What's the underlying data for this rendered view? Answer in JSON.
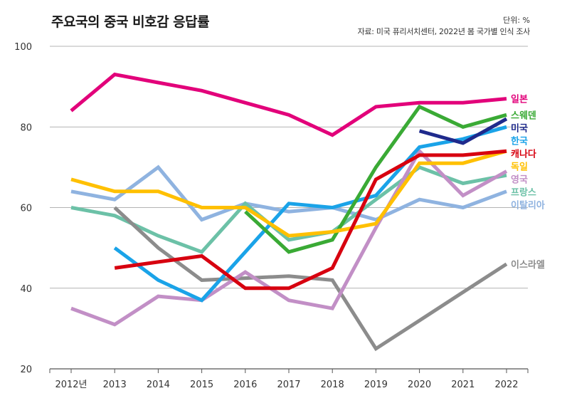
{
  "header": {
    "title": "주요국의 중국 비호감 응답률",
    "unit": "단위: %",
    "source": "자료: 미국 퓨리서치센터, 2022년 봄 국가별 인식 조사"
  },
  "chart_data": {
    "type": "line",
    "title": "주요국의 중국 비호감 응답률",
    "xlabel": "",
    "ylabel": "",
    "x": [
      "2012년",
      "2013",
      "2014",
      "2015",
      "2016",
      "2017",
      "2018",
      "2019",
      "2020",
      "2021",
      "2022"
    ],
    "ylim": [
      20,
      100
    ],
    "yticks": [
      20,
      40,
      60,
      80,
      100
    ],
    "grid": true,
    "series": [
      {
        "name": "일본",
        "color": "#e2007a",
        "values": [
          84,
          93,
          91,
          89,
          86,
          83,
          78,
          85,
          86,
          86,
          87
        ]
      },
      {
        "name": "스웨덴",
        "color": "#3aaa35",
        "values": [
          null,
          null,
          null,
          null,
          59,
          49,
          52,
          70,
          85,
          80,
          83
        ]
      },
      {
        "name": "미국",
        "color": "#1f2a8c",
        "values": [
          null,
          null,
          null,
          null,
          null,
          null,
          null,
          null,
          79,
          76,
          82
        ]
      },
      {
        "name": "한국",
        "color": "#1aa3e8",
        "values": [
          null,
          50,
          42,
          37,
          49,
          61,
          60,
          63,
          75,
          77,
          80
        ]
      },
      {
        "name": "캐나다",
        "color": "#d7000f",
        "values": [
          null,
          45,
          46.5,
          48,
          40,
          40,
          45,
          67,
          73,
          73,
          74
        ]
      },
      {
        "name": "독일",
        "color": "#ffc000",
        "values": [
          67,
          64,
          64,
          60,
          60,
          53,
          54,
          56,
          71,
          71,
          74
        ]
      },
      {
        "name": "영국",
        "color": "#c28fc6",
        "values": [
          35,
          31,
          38,
          37,
          44,
          37,
          35,
          55,
          74,
          63,
          69
        ]
      },
      {
        "name": "프랑스",
        "color": "#6cc1a7",
        "values": [
          60,
          58,
          53,
          49,
          61,
          52,
          54,
          62,
          70,
          66,
          68
        ]
      },
      {
        "name": "이탈리아",
        "color": "#8fb3e0",
        "values": [
          64,
          62,
          70,
          57,
          61,
          59,
          60,
          57,
          62,
          60,
          64
        ]
      },
      {
        "name": "이스라엘",
        "color": "#8c8c8c",
        "values": [
          null,
          60,
          50,
          42,
          42.5,
          43,
          42,
          25,
          32,
          39,
          46
        ]
      }
    ]
  }
}
